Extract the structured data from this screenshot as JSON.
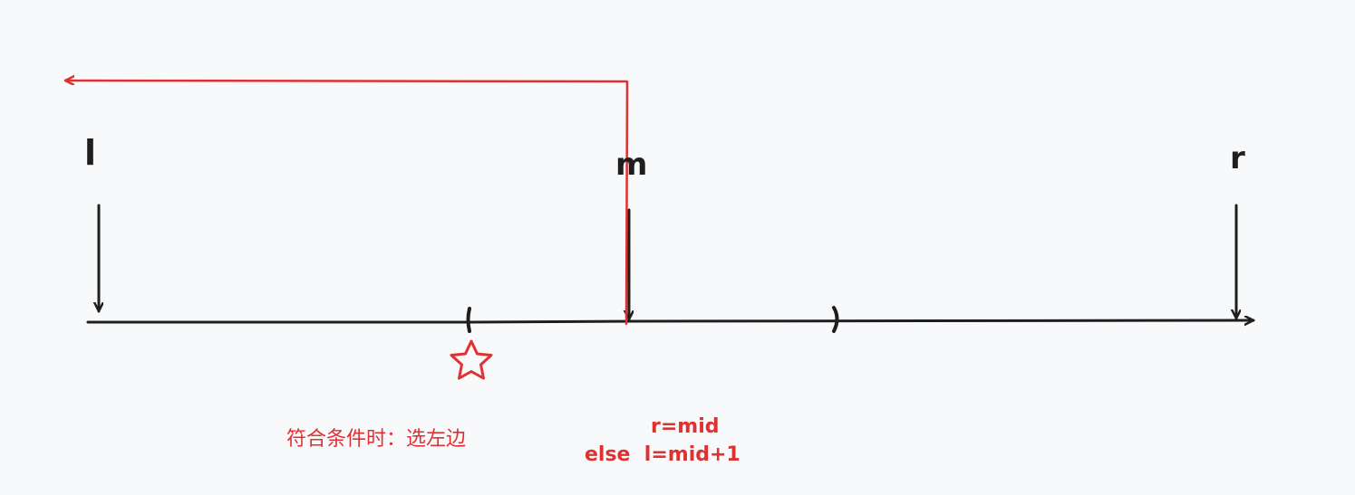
{
  "labels": {
    "left": "l",
    "mid": "m",
    "right": "r"
  },
  "notes": {
    "condition": "符合条件时：选左边",
    "assign_r": "r=mid",
    "assign_else": "else  l=mid+1"
  },
  "colors": {
    "background": "#f8f9fb",
    "ink": "#1e1e1e",
    "accent": "#e03131"
  },
  "icons": {
    "target": "star-icon"
  }
}
